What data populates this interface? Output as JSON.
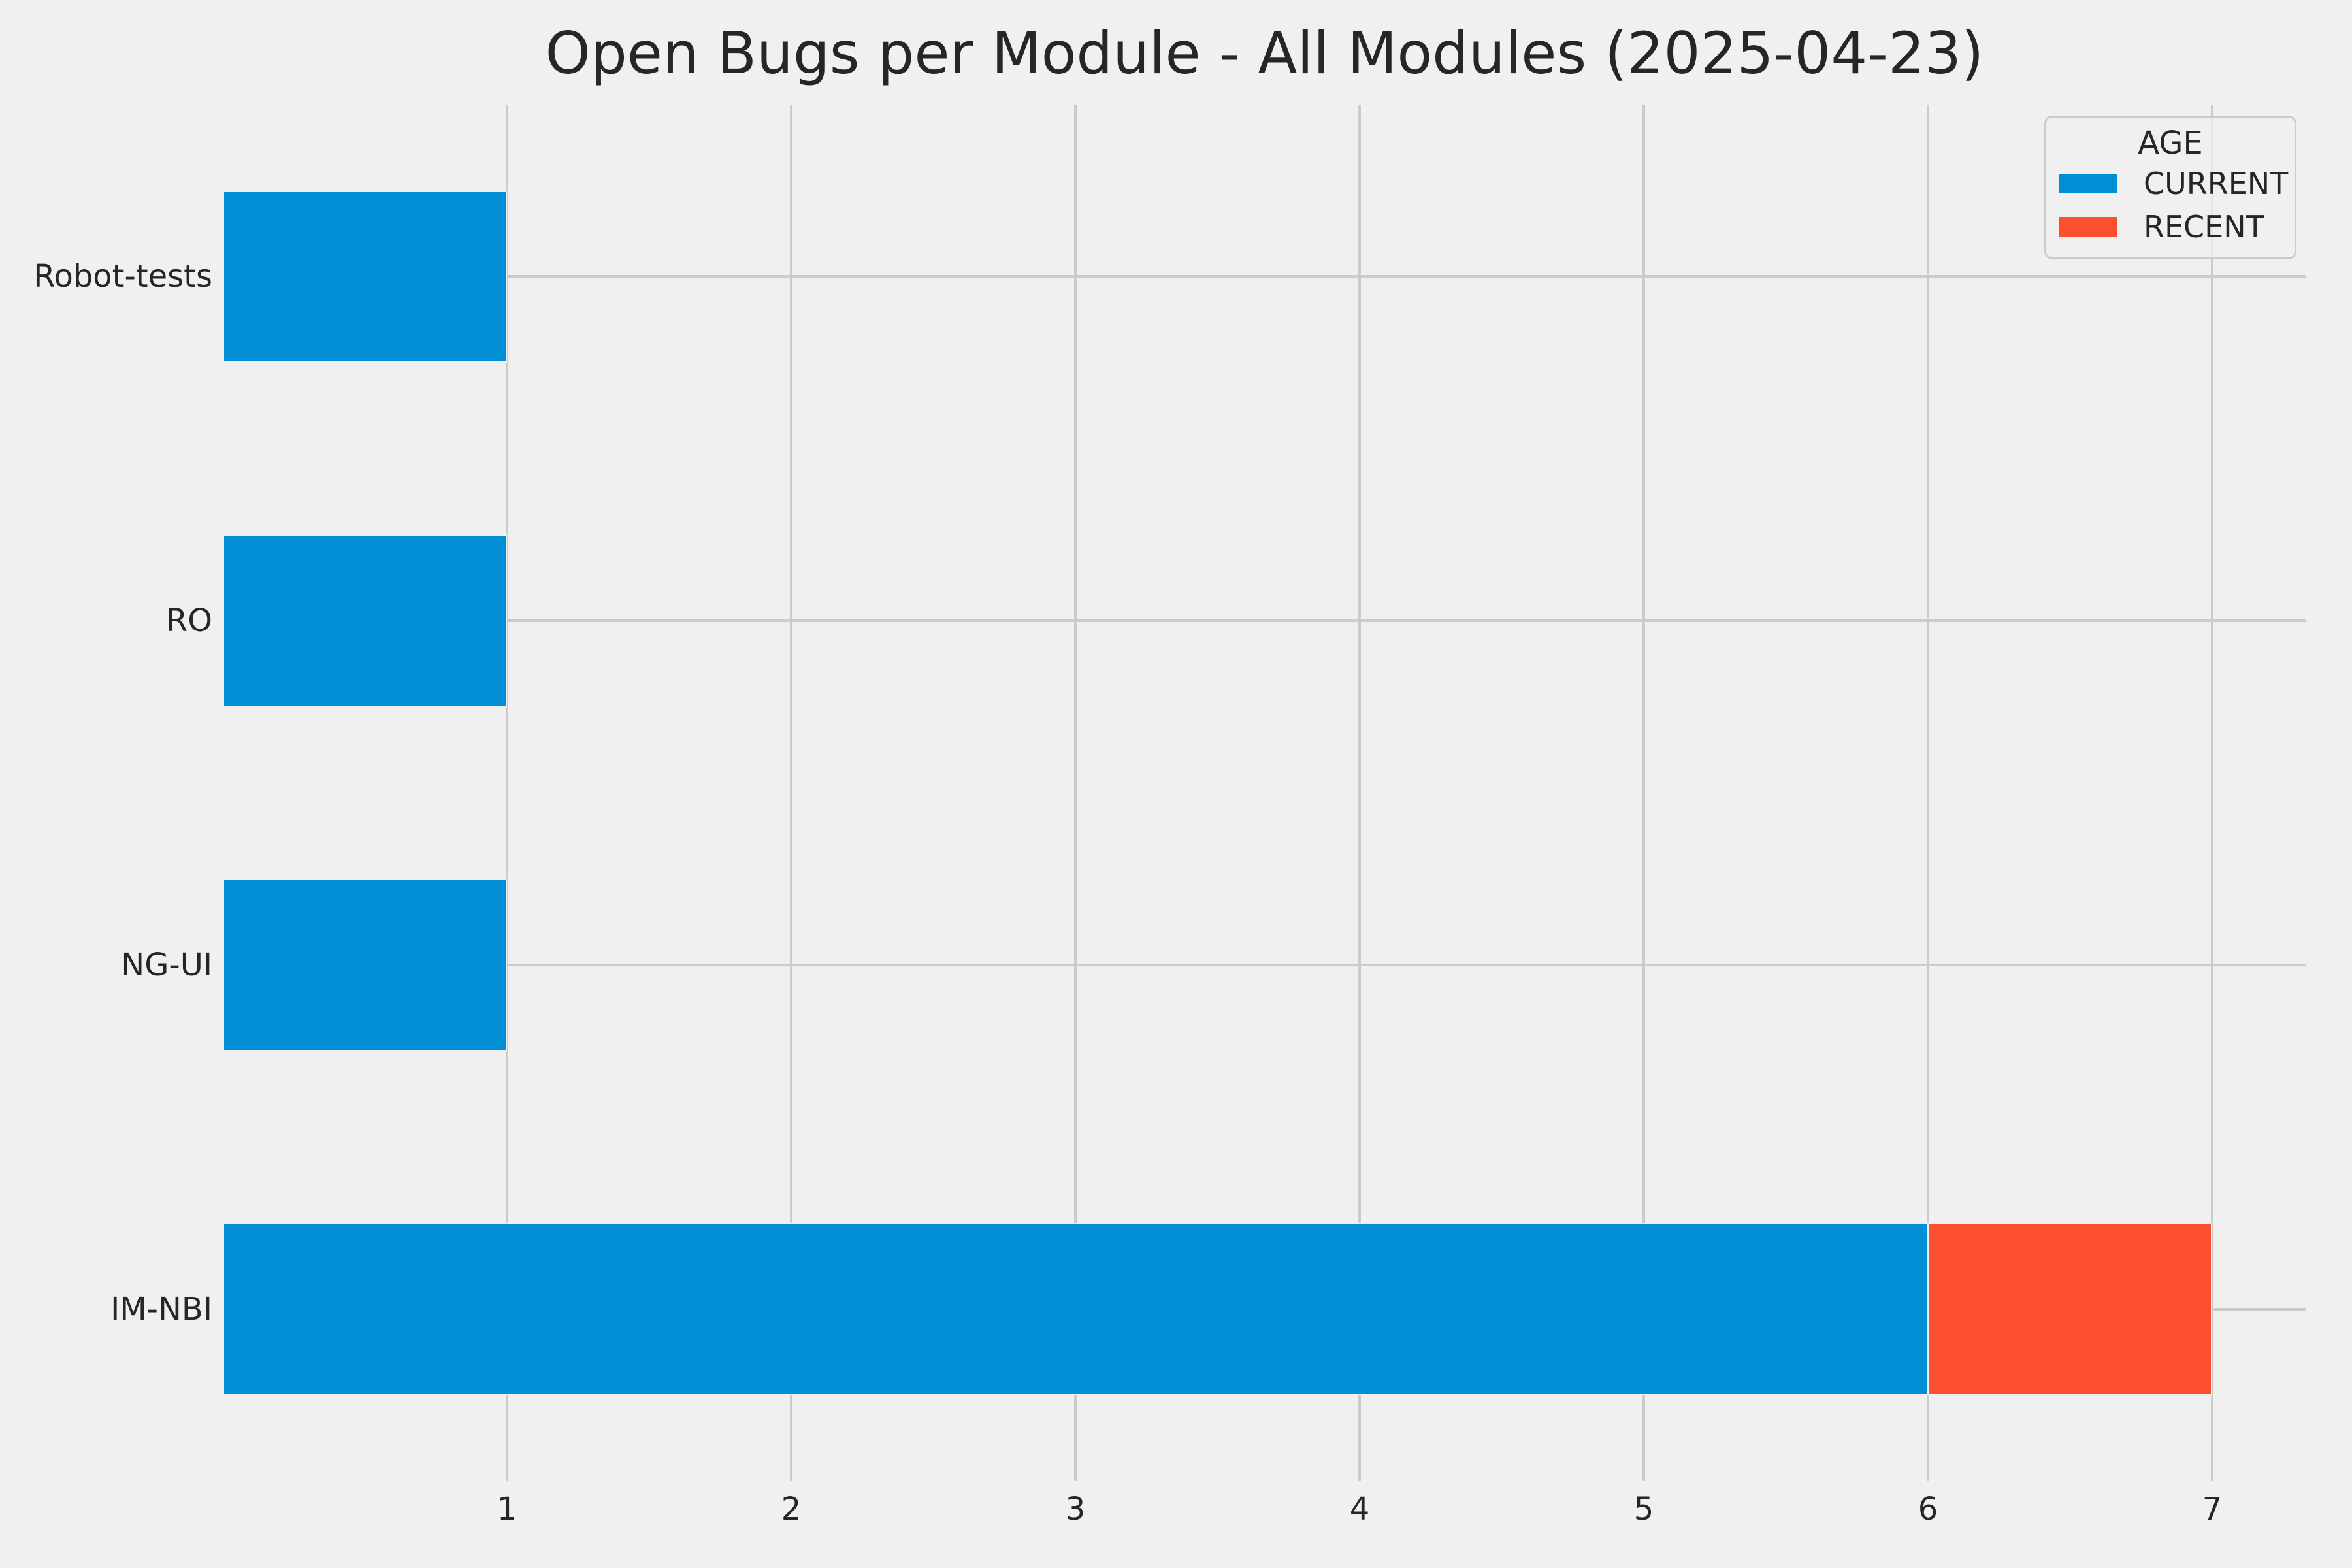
{
  "colors": {
    "background": "#f0f0f0",
    "grid": "#cbcbcb",
    "text": "#262626",
    "legend_border": "#cbcbcb",
    "current": "#008fd5",
    "recent": "#fc4f30"
  },
  "chart_data": {
    "type": "bar",
    "orientation": "horizontal",
    "stacked": true,
    "title": "Open Bugs per Module - All Modules (2025-04-23)",
    "categories": [
      "Robot-tests",
      "RO",
      "NG-UI",
      "IM-NBI"
    ],
    "series": [
      {
        "name": "CURRENT",
        "color": "#008fd5",
        "values": [
          1,
          1,
          1,
          6
        ]
      },
      {
        "name": "RECENT",
        "color": "#fc4f30",
        "values": [
          0,
          0,
          0,
          1
        ]
      }
    ],
    "xlabel": "",
    "ylabel": "",
    "xlim": [
      0,
      7.33
    ],
    "xticks": [
      "1",
      "2",
      "3",
      "4",
      "5",
      "6",
      "7"
    ],
    "grid": true,
    "legend": {
      "title": "AGE",
      "position": "upper-right",
      "entries": [
        "CURRENT",
        "RECENT"
      ]
    }
  }
}
